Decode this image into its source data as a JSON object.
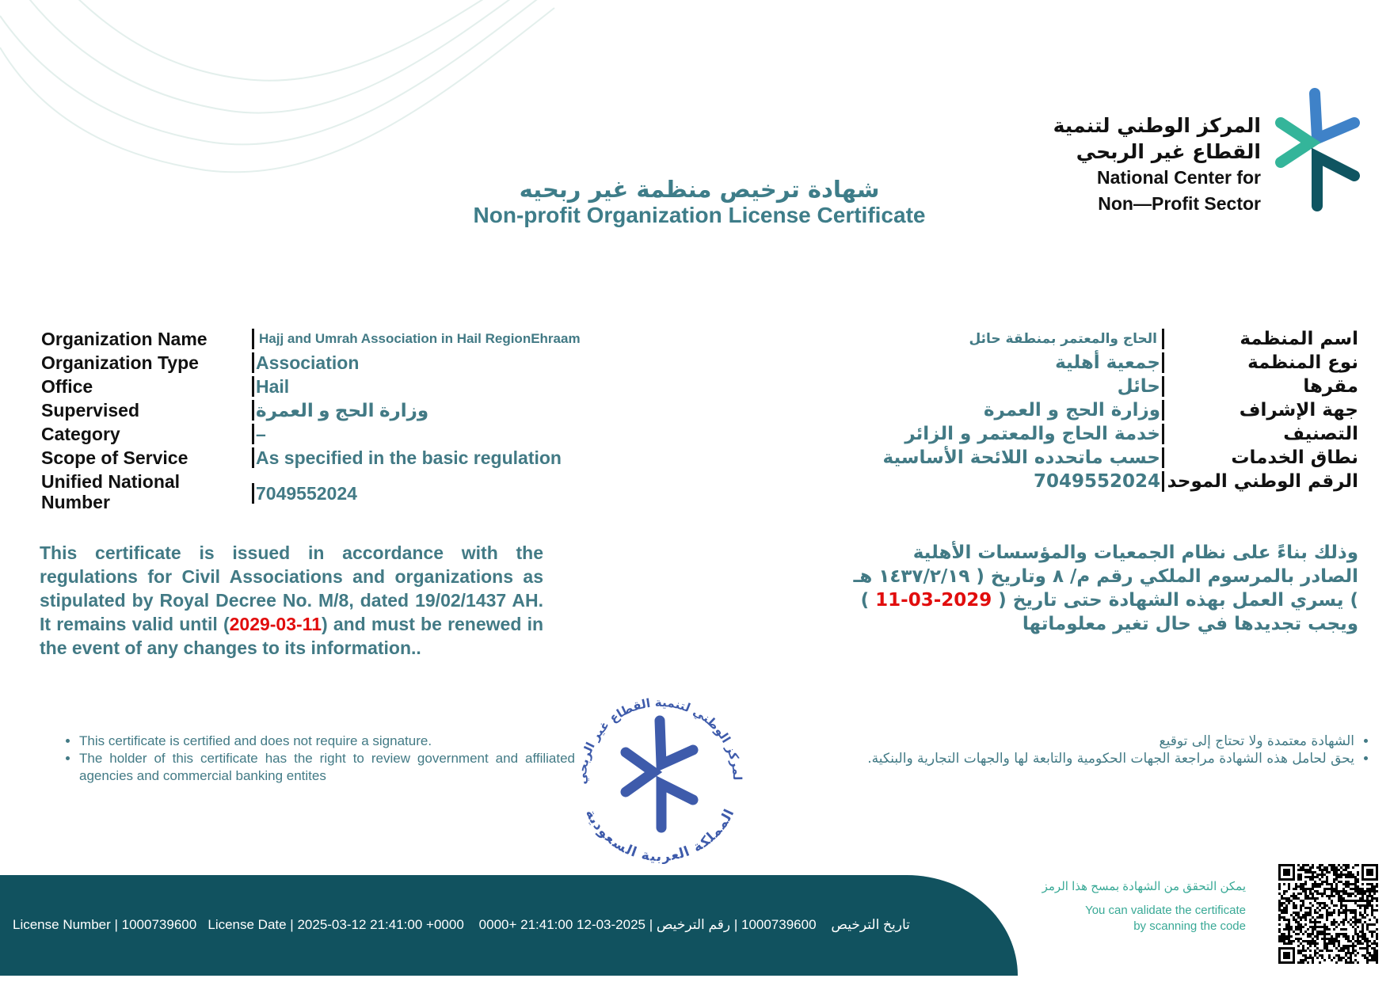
{
  "header": {
    "title_ar": "شهادة ترخيص منظمة غير ربحيه",
    "title_en": "Non-profit Organization License Certificate"
  },
  "logo": {
    "line1_ar": "المركز الوطني لتنمية",
    "line2_ar": "القطاع غير الربحي",
    "line3_en": "National Center for",
    "line4_en": "Non—Profit Sector",
    "colors": {
      "blue": "#3f82c8",
      "green": "#34b59a",
      "dark": "#0f5561"
    }
  },
  "fields_en": [
    {
      "label": "Organization Name",
      "value": "Hajj and Umrah Association in Hail RegionEhraam"
    },
    {
      "label": "Organization Type",
      "value": "Association"
    },
    {
      "label": "Office",
      "value": "Hail"
    },
    {
      "label": "Supervised",
      "value": "وزارة الحج و العمرة"
    },
    {
      "label": "Category",
      "value": "–"
    },
    {
      "label": "Scope of Service",
      "value": "As specified in the basic regulation"
    },
    {
      "label": "Unified National Number",
      "value": "7049552024"
    }
  ],
  "fields_ar": [
    {
      "label": "اسم المنظمة",
      "value": "الحاج والمعتمر بمنطقة حائل"
    },
    {
      "label": "نوع المنظمة",
      "value": "جمعية أهلية"
    },
    {
      "label": "مقرها",
      "value": "حائل"
    },
    {
      "label": "جهة الإشراف",
      "value": "وزارة الحج و العمرة"
    },
    {
      "label": "التصنيف",
      "value": "خدمة الحاج والمعتمر و الزائر"
    },
    {
      "label": "نطاق الخدمات",
      "value": "حسب ماتحدده اللائحة الأساسية"
    },
    {
      "label": "الرقم الوطني الموحد",
      "value": "7049552024"
    }
  ],
  "statement_en": {
    "before": "This certificate is issued in accordance with the regulations for Civil Associations and organizations as stipulated by Royal Decree No. M/8, dated 19/02/1437 AH. It remains valid until (",
    "date": "2029-03-11",
    "after": ") and must be renewed in the event of any changes to its information.."
  },
  "statement_ar": {
    "before": "وذلك بناءً على نظام الجمعيات والمؤسسات الأهلية الصادر بالمرسوم الملكي رقم م/ ٨ وتاريخ ( ١٤٣٧/٢/١٩ هـ ) يسري العمل بهذه الشهادة حتى تاريخ ( ",
    "date": "11-03-2029",
    "after": " ) ويجب تجديدها في حال تغير معلوماتها"
  },
  "notes_en": [
    "This certificate is certified and does not require a signature.",
    "The holder of this certificate has the right to review government and affiliated agencies and commercial banking entites"
  ],
  "notes_ar": [
    "الشهادة معتمدة ولا تحتاج إلى توقيع",
    "يحق لحامل هذه الشهادة مراجعة الجهات الحكومية والتابعة لها والجهات التجارية والبنكية."
  ],
  "seal": {
    "top_text": "المركز الوطني لتنمية القطاع غير الربحي",
    "bottom_text": "المملكة العربية السعودية",
    "color": "#3e5bab"
  },
  "footer": {
    "text": "License Number | 1000739600   License Date | 2025-03-12 21:41:00 +0000    0000+ 21:41:00 12-03-2025 | تاريخ الترخيص    1000739600 | رقم الترخيص",
    "bg_color": "#11525f"
  },
  "qr": {
    "note_ar": "يمكن التحقق من الشهادة بمسح هذا الرمز",
    "note_en_1": "You can validate the certificate",
    "note_en_2": "by scanning the code"
  }
}
